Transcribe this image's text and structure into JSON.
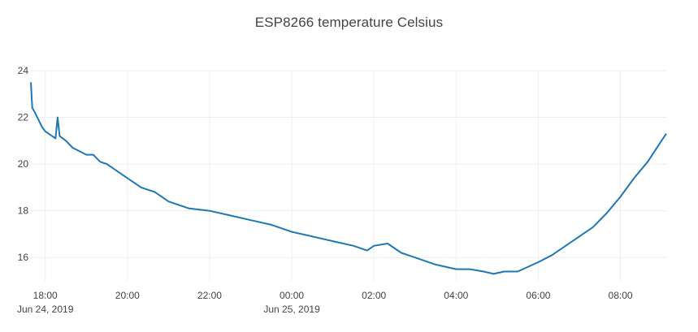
{
  "chart_data": {
    "type": "line",
    "title": "ESP8266 temperature Celsius",
    "xlabel": "",
    "ylabel": "",
    "x_range": [
      "2019-06-24T17:39",
      "2019-06-25T09:07"
    ],
    "ylim": [
      15,
      24
    ],
    "grid": true,
    "x_ticks": [
      {
        "time": "2019-06-24T18:00",
        "label": "18:00",
        "sublabel": "Jun 24, 2019"
      },
      {
        "time": "2019-06-24T20:00",
        "label": "20:00",
        "sublabel": ""
      },
      {
        "time": "2019-06-24T22:00",
        "label": "22:00",
        "sublabel": ""
      },
      {
        "time": "2019-06-25T00:00",
        "label": "00:00",
        "sublabel": "Jun 25, 2019"
      },
      {
        "time": "2019-06-25T02:00",
        "label": "02:00",
        "sublabel": ""
      },
      {
        "time": "2019-06-25T04:00",
        "label": "04:00",
        "sublabel": ""
      },
      {
        "time": "2019-06-25T06:00",
        "label": "06:00",
        "sublabel": ""
      },
      {
        "time": "2019-06-25T08:00",
        "label": "08:00",
        "sublabel": ""
      }
    ],
    "y_ticks": [
      16,
      18,
      20,
      22,
      24
    ],
    "series": [
      {
        "name": "",
        "color": "#1f77b4",
        "x": [
          "2019-06-24T17:39",
          "2019-06-24T17:41",
          "2019-06-24T17:45",
          "2019-06-24T17:50",
          "2019-06-24T17:55",
          "2019-06-24T18:00",
          "2019-06-24T18:10",
          "2019-06-24T18:15",
          "2019-06-24T18:18",
          "2019-06-24T18:21",
          "2019-06-24T18:30",
          "2019-06-24T18:40",
          "2019-06-24T19:00",
          "2019-06-24T19:10",
          "2019-06-24T19:20",
          "2019-06-24T19:30",
          "2019-06-24T19:40",
          "2019-06-24T20:00",
          "2019-06-24T20:20",
          "2019-06-24T20:40",
          "2019-06-24T21:00",
          "2019-06-24T21:30",
          "2019-06-24T22:00",
          "2019-06-24T22:30",
          "2019-06-24T23:00",
          "2019-06-24T23:30",
          "2019-06-25T00:00",
          "2019-06-25T00:30",
          "2019-06-25T01:00",
          "2019-06-25T01:30",
          "2019-06-25T01:50",
          "2019-06-25T02:00",
          "2019-06-25T02:20",
          "2019-06-25T02:40",
          "2019-06-25T03:00",
          "2019-06-25T03:30",
          "2019-06-25T04:00",
          "2019-06-25T04:20",
          "2019-06-25T04:40",
          "2019-06-25T04:55",
          "2019-06-25T05:10",
          "2019-06-25T05:30",
          "2019-06-25T06:00",
          "2019-06-25T06:20",
          "2019-06-25T06:40",
          "2019-06-25T07:00",
          "2019-06-25T07:20",
          "2019-06-25T07:40",
          "2019-06-25T08:00",
          "2019-06-25T08:20",
          "2019-06-25T08:40",
          "2019-06-25T09:00",
          "2019-06-25T09:07"
        ],
        "y": [
          23.5,
          22.4,
          22.2,
          21.9,
          21.6,
          21.4,
          21.2,
          21.1,
          22.0,
          21.2,
          21.0,
          20.7,
          20.4,
          20.4,
          20.1,
          20.0,
          19.8,
          19.4,
          19.0,
          18.8,
          18.4,
          18.1,
          18.0,
          17.8,
          17.6,
          17.4,
          17.1,
          16.9,
          16.7,
          16.5,
          16.3,
          16.5,
          16.6,
          16.2,
          16.0,
          15.7,
          15.5,
          15.5,
          15.4,
          15.3,
          15.4,
          15.4,
          15.8,
          16.1,
          16.5,
          16.9,
          17.3,
          17.9,
          18.6,
          19.4,
          20.1,
          21.0,
          21.3
        ]
      }
    ]
  }
}
